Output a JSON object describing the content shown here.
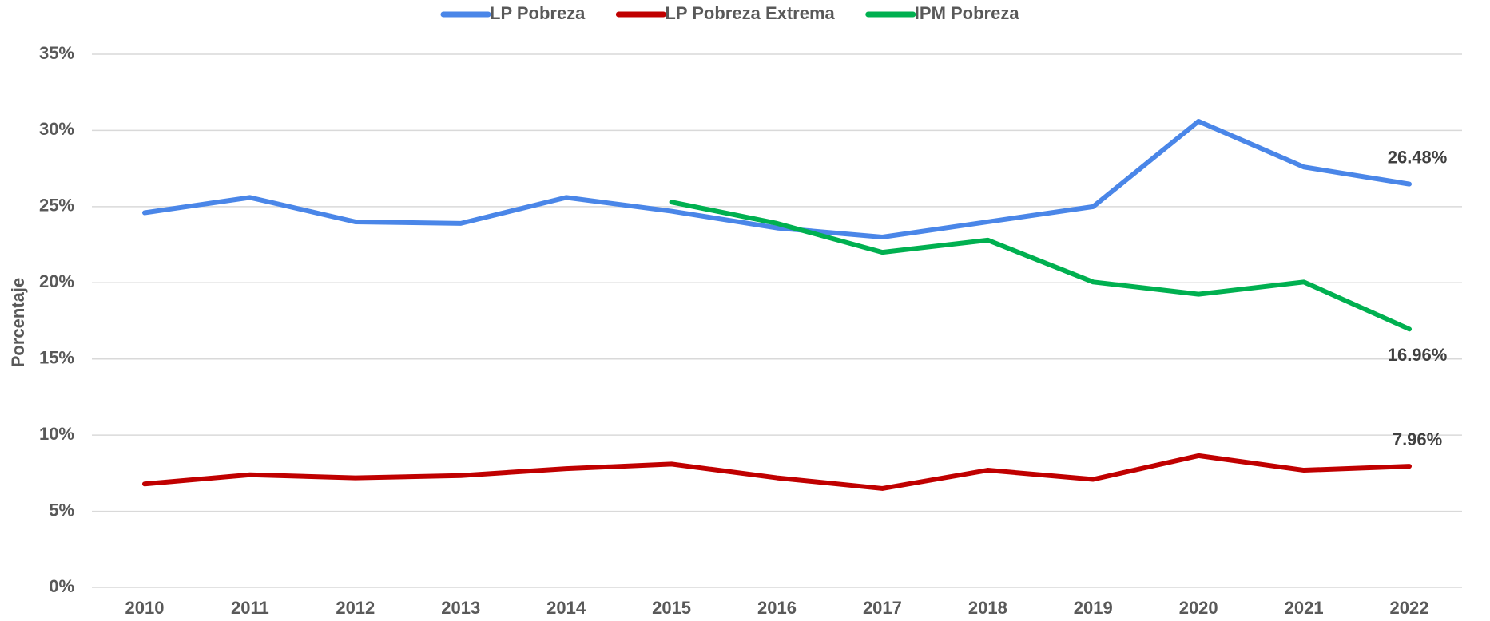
{
  "chart_data": {
    "type": "line",
    "y_label": "Porcentaje",
    "categories": [
      "2010",
      "2011",
      "2012",
      "2013",
      "2014",
      "2015",
      "2016",
      "2017",
      "2018",
      "2019",
      "2020",
      "2021",
      "2022"
    ],
    "series": [
      {
        "name": "LP Pobreza",
        "color": "#4a86e8",
        "values": [
          24.6,
          25.6,
          24.0,
          23.9,
          25.6,
          24.7,
          23.6,
          23.0,
          24.0,
          25.0,
          30.6,
          27.6,
          26.48
        ],
        "value_labels": [
          null,
          null,
          null,
          null,
          null,
          null,
          null,
          null,
          null,
          null,
          null,
          null,
          "26.48%"
        ]
      },
      {
        "name": "LP Pobreza Extrema",
        "color": "#c00000",
        "values": [
          6.8,
          7.4,
          7.2,
          7.35,
          7.8,
          8.1,
          7.2,
          6.5,
          7.7,
          7.1,
          8.65,
          7.7,
          7.96
        ],
        "value_labels": [
          null,
          null,
          null,
          null,
          null,
          null,
          null,
          null,
          null,
          null,
          null,
          null,
          "7.96%"
        ]
      },
      {
        "name": "IPM Pobreza",
        "color": "#00b050",
        "values": [
          null,
          null,
          null,
          null,
          null,
          25.3,
          23.9,
          22.0,
          22.8,
          20.05,
          19.25,
          20.05,
          16.96
        ],
        "value_labels": [
          null,
          null,
          null,
          null,
          null,
          null,
          null,
          null,
          null,
          null,
          null,
          null,
          "16.96%"
        ]
      }
    ],
    "ylim": [
      0,
      35
    ],
    "yticks": [
      {
        "value": 0,
        "label": "0%"
      },
      {
        "value": 5,
        "label": "5%"
      },
      {
        "value": 10,
        "label": "10%"
      },
      {
        "value": 15,
        "label": "15%"
      },
      {
        "value": 20,
        "label": "20%"
      },
      {
        "value": 25,
        "label": "25%"
      },
      {
        "value": 30,
        "label": "30%"
      },
      {
        "value": 35,
        "label": "35%"
      }
    ],
    "grid": true,
    "legend": "top"
  }
}
